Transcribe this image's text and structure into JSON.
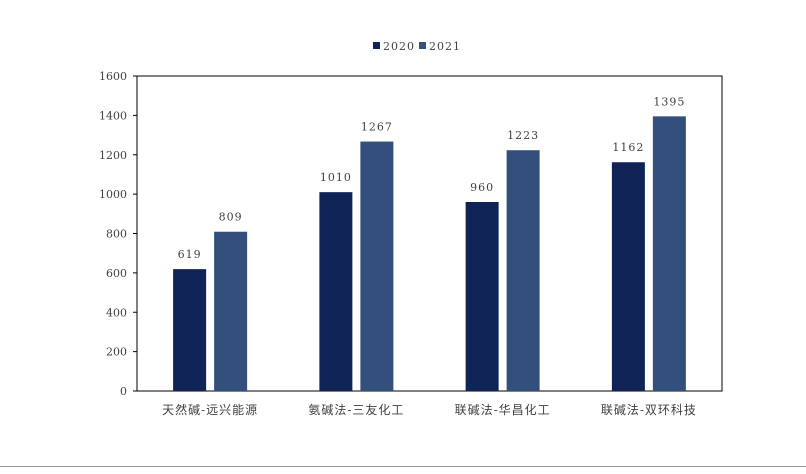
{
  "chart_data": {
    "type": "bar",
    "categories": [
      "天然碱-远兴能源",
      "氨碱法-三友化工",
      "联碱法-华昌化工",
      "联碱法-双环科技"
    ],
    "series": [
      {
        "name": "2020",
        "values": [
          619,
          1010,
          960,
          1162
        ]
      },
      {
        "name": "2021",
        "values": [
          809,
          1267,
          1223,
          1395
        ]
      }
    ],
    "ylim": [
      0,
      1600
    ],
    "yticks": [
      0,
      200,
      400,
      600,
      800,
      1000,
      1200,
      1400,
      1600
    ],
    "title": "",
    "xlabel": "",
    "ylabel": "",
    "grid": false,
    "legend_position": "top-center",
    "colors": [
      "#0f2357",
      "#33507d"
    ]
  }
}
